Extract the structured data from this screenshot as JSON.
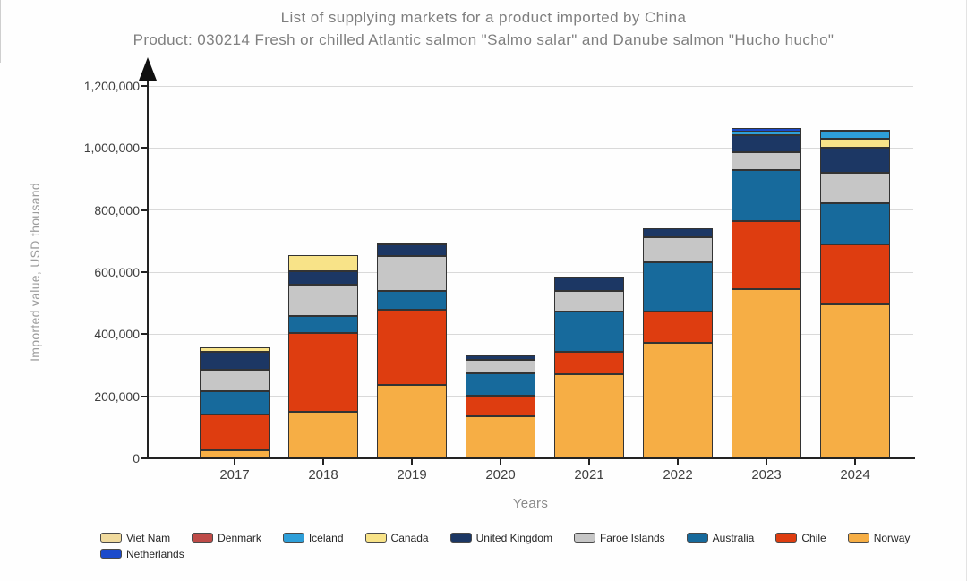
{
  "title": {
    "line1": "List of supplying markets for a product imported by China",
    "line2": "Product: 030214 Fresh or chilled Atlantic salmon \"Salmo salar\" and Danube salmon \"Hucho hucho\""
  },
  "chart_data": {
    "type": "bar",
    "stacked": true,
    "title": "List of supplying markets for a product imported by China",
    "subtitle": "Product: 030214 Fresh or chilled Atlantic salmon \"Salmo salar\" and Danube salmon \"Hucho hucho\"",
    "xlabel": "Years",
    "ylabel": "Imported value, USD thousand",
    "categories": [
      "2017",
      "2018",
      "2019",
      "2020",
      "2021",
      "2022",
      "2023",
      "2024"
    ],
    "ylim": [
      0,
      1200000
    ],
    "ytick_interval": 200000,
    "ytick_labels": [
      "0",
      "200,000",
      "400,000",
      "600,000",
      "800,000",
      "1,000,000",
      "1,200,000"
    ],
    "grid": true,
    "legend_position": "bottom",
    "series": [
      {
        "name": "Norway",
        "color": "#F6AE45",
        "values": [
          25000,
          150000,
          237000,
          136000,
          270000,
          371000,
          544000,
          496000
        ]
      },
      {
        "name": "Chile",
        "color": "#DE3D10",
        "values": [
          117000,
          255000,
          242000,
          67000,
          72000,
          101000,
          221000,
          192000
        ]
      },
      {
        "name": "Australia",
        "color": "#176A9C",
        "values": [
          75000,
          53000,
          59000,
          72000,
          130000,
          159000,
          164000,
          135000
        ]
      },
      {
        "name": "Faroe Islands",
        "color": "#C6C6C6",
        "values": [
          69000,
          101000,
          113000,
          43000,
          67000,
          82000,
          58000,
          96000
        ]
      },
      {
        "name": "United Kingdom",
        "color": "#1C3764",
        "values": [
          57000,
          43000,
          37000,
          14000,
          48000,
          29000,
          53000,
          82000
        ]
      },
      {
        "name": "Canada",
        "color": "#F8E388",
        "values": [
          14000,
          53000,
          0,
          0,
          0,
          0,
          0,
          29000
        ]
      },
      {
        "name": "Iceland",
        "color": "#2E9FD9",
        "values": [
          0,
          0,
          7000,
          0,
          0,
          0,
          14000,
          24000
        ]
      },
      {
        "name": "Denmark",
        "color": "#BE4B48",
        "values": [
          0,
          0,
          0,
          0,
          0,
          0,
          0,
          0
        ]
      },
      {
        "name": "Viet Nam",
        "color": "#F0DA9D",
        "values": [
          0,
          0,
          0,
          0,
          0,
          0,
          0,
          0
        ]
      },
      {
        "name": "Netherlands",
        "color": "#1B4ACB",
        "values": [
          0,
          0,
          0,
          0,
          0,
          0,
          10000,
          5000
        ]
      }
    ],
    "legend_order": [
      "Viet Nam",
      "Denmark",
      "Iceland",
      "Canada",
      "United Kingdom",
      "Faroe Islands",
      "Australia",
      "Chile",
      "Norway",
      "Netherlands"
    ]
  }
}
